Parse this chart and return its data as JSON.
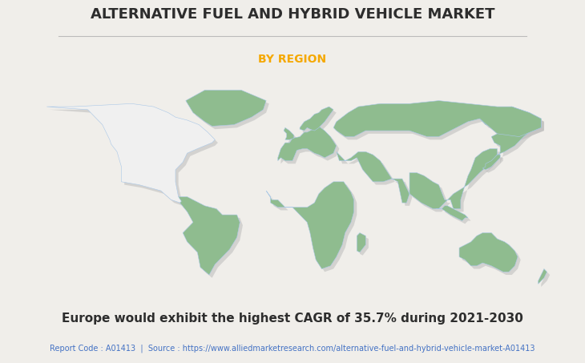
{
  "title": "ALTERNATIVE FUEL AND HYBRID VEHICLE MARKET",
  "subtitle": "BY REGION",
  "subtitle_color": "#F5A800",
  "title_color": "#2d2d2d",
  "bg_color": "#f0eeea",
  "map_land_color": "#8fbc8f",
  "map_shadow_color": "#b8b8b8",
  "map_border_color": "#aac8e8",
  "highlight_color": "#f0f0f0",
  "annotation": "Europe would exhibit the highest CAGR of 35.7% during 2021-2030",
  "footer_text": "Report Code : A01413  |  Source : https://www.alliedmarketresearch.com/alternative-fuel-and-hybrid-vehicle-market-A01413",
  "footer_color": "#4472c4",
  "divider_color": "#bbbbbb",
  "title_fontsize": 13,
  "subtitle_fontsize": 10,
  "annotation_fontsize": 11,
  "footer_fontsize": 7
}
